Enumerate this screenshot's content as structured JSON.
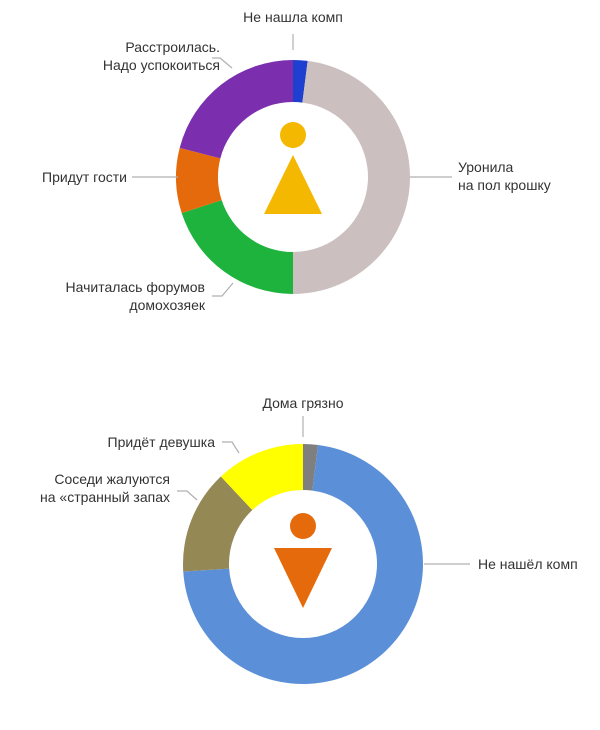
{
  "chart_data": [
    {
      "type": "pie",
      "title": "",
      "icon": "female-icon",
      "icon_color": "#f5b800",
      "slices": [
        {
          "label": "Не нашла комп",
          "value": 2,
          "color": "#1f3fd1"
        },
        {
          "label": "Уронила на пол крошку",
          "value": 48,
          "color": "#cbbfbf"
        },
        {
          "label": "Начиталась форумов домохозяек",
          "value": 20,
          "color": "#1db33c"
        },
        {
          "label": "Придут гости",
          "value": 9,
          "color": "#e56a0c"
        },
        {
          "label": "Расстроилась. Надо успокоиться",
          "value": 21,
          "color": "#7b2fae"
        }
      ],
      "label_lines": [
        [
          "Не нашла комп"
        ],
        [
          "Уронила",
          "на пол крошку"
        ],
        [
          "Начиталась форумов",
          "домохозяек"
        ],
        [
          "Придут гости"
        ],
        [
          "Расстроилась.",
          "Надо успокоиться"
        ]
      ]
    },
    {
      "type": "pie",
      "title": "",
      "icon": "male-icon",
      "icon_color": "#e56a0c",
      "slices": [
        {
          "label": "Дома грязно",
          "value": 2,
          "color": "#7f7f7f"
        },
        {
          "label": "Не нашёл комп",
          "value": 72,
          "color": "#5b90d8"
        },
        {
          "label": "Соседи жалуются на «странный запах",
          "value": 14,
          "color": "#948855"
        },
        {
          "label": "Придёт девушка",
          "value": 12,
          "color": "#ffff00"
        }
      ],
      "label_lines": [
        [
          "Дома грязно"
        ],
        [
          "Не нашёл комп"
        ],
        [
          "Соседи жалуются",
          "на «странный запах"
        ],
        [
          "Придёт девушка"
        ]
      ]
    }
  ]
}
